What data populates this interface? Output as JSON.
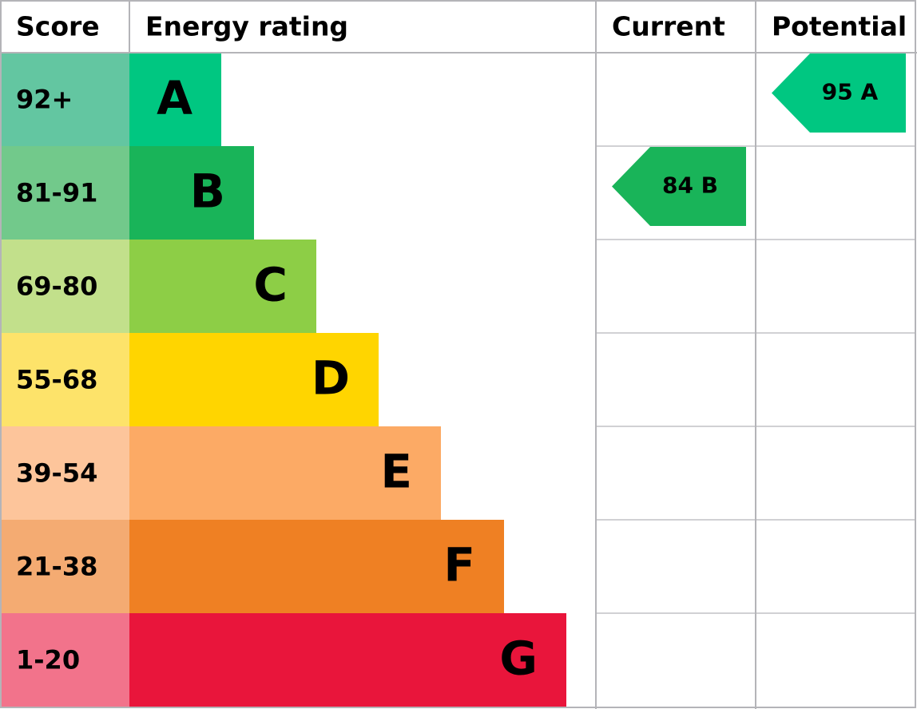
{
  "header": [
    "Score",
    "Energy rating",
    "Current",
    "Potential"
  ],
  "rows": [
    {
      "score": "92+",
      "rating": "A",
      "score_color": "#63c6a1",
      "color": "#00c781"
    },
    {
      "score": "81-91",
      "rating": "B",
      "score_color": "#72c98b",
      "color": "#19b459"
    },
    {
      "score": "69-80",
      "rating": "C",
      "score_color": "#c2e08b",
      "color": "#8dce46"
    },
    {
      "score": "55-68",
      "rating": "D",
      "score_color": "#fde36a",
      "color": "#ffd500"
    },
    {
      "score": "39-54",
      "rating": "E",
      "score_color": "#fdc59b",
      "color": "#fcaa65"
    },
    {
      "score": "21-38",
      "rating": "F",
      "score_color": "#f4ab72",
      "color": "#ef8023"
    },
    {
      "score": "1-20",
      "rating": "G",
      "score_color": "#f2738b",
      "color": "#e9153b"
    }
  ],
  "current": "84 B",
  "potential": "95 A"
}
